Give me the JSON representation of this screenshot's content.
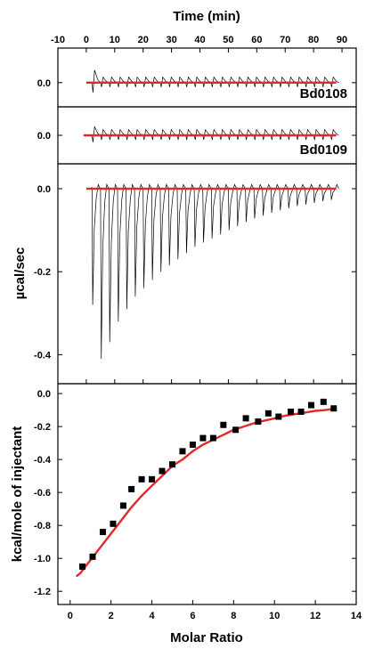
{
  "chart_data": [
    {
      "panel": "bd0108",
      "type": "line",
      "label": "Bd0108",
      "xlabel": "Time (min)",
      "ylabel": "",
      "xlim": [
        -10,
        95
      ],
      "ylim": [
        -0.035,
        0.05
      ],
      "xticks": [
        -10,
        0,
        10,
        20,
        30,
        40,
        50,
        60,
        70,
        80,
        90
      ],
      "yticks": [
        0.0
      ],
      "ytick_labels": [
        "0.0"
      ],
      "baseline": 0.0,
      "fit_x_range": [
        0,
        88
      ],
      "injections": {
        "start": 2.0,
        "interval": 3.0,
        "count": 29,
        "amplitude_first": 0.018,
        "amplitude_rest": 0.008,
        "sign": 1
      }
    },
    {
      "panel": "bd0109",
      "type": "line",
      "label": "Bd0109",
      "xlabel": "",
      "ylabel": "",
      "xlim": [
        -10,
        95
      ],
      "ylim": [
        -0.04,
        0.04
      ],
      "yticks": [
        0.0
      ],
      "ytick_labels": [
        "0.0"
      ],
      "baseline": 0.0,
      "fit_x_range": [
        -1,
        88
      ],
      "injections": {
        "start": 2.0,
        "interval": 3.0,
        "count": 29,
        "amplitude_first": 0.012,
        "amplitude_rest": 0.008,
        "sign": 1
      }
    },
    {
      "panel": "raw",
      "type": "line",
      "xlabel": "",
      "ylabel": "µcal/sec",
      "xlim": [
        -10,
        95
      ],
      "ylim": [
        -0.47,
        0.06
      ],
      "yticks": [
        0.0,
        -0.2,
        -0.4
      ],
      "ytick_labels": [
        "0.0",
        "-0.2",
        "-0.4"
      ],
      "baseline": 0.0,
      "fit_x_range": [
        0,
        88
      ],
      "peak_x": [
        2,
        5,
        8,
        11,
        14,
        17,
        20,
        23,
        26,
        29,
        32,
        35,
        38,
        41,
        44,
        47,
        50,
        53,
        56,
        59,
        62,
        65,
        68,
        71,
        74,
        77,
        80,
        83,
        86
      ],
      "peak_y": [
        -0.28,
        -0.41,
        -0.37,
        -0.32,
        -0.29,
        -0.26,
        -0.24,
        -0.22,
        -0.2,
        -0.185,
        -0.17,
        -0.155,
        -0.14,
        -0.13,
        -0.12,
        -0.11,
        -0.1,
        -0.09,
        -0.08,
        -0.072,
        -0.065,
        -0.058,
        -0.052,
        -0.047,
        -0.042,
        -0.038,
        -0.034,
        -0.03,
        -0.027
      ]
    },
    {
      "panel": "binding",
      "type": "scatter",
      "xlabel": "Molar Ratio",
      "ylabel": "kcal/mole of injectant",
      "xlim": [
        -0.6,
        14
      ],
      "ylim": [
        -1.28,
        0.06
      ],
      "xticks": [
        0,
        2,
        4,
        6,
        8,
        10,
        12,
        14
      ],
      "yticks": [
        0.0,
        -0.2,
        -0.4,
        -0.6,
        -0.8,
        -1.0,
        -1.2
      ],
      "ytick_labels": [
        "0.0",
        "-0.2",
        "-0.4",
        "-0.6",
        "-0.8",
        "-1.0",
        "-1.2"
      ],
      "points_x": [
        0.6,
        1.1,
        1.6,
        2.1,
        2.6,
        3.0,
        3.5,
        4.0,
        4.5,
        5.0,
        5.5,
        6.0,
        6.5,
        7.0,
        7.5,
        8.1,
        8.6,
        9.2,
        9.7,
        10.2,
        10.8,
        11.3,
        11.8,
        12.4,
        12.9
      ],
      "points_y": [
        -1.05,
        -0.99,
        -0.84,
        -0.79,
        -0.68,
        -0.58,
        -0.52,
        -0.52,
        -0.47,
        -0.43,
        -0.35,
        -0.31,
        -0.27,
        -0.27,
        -0.19,
        -0.22,
        -0.15,
        -0.17,
        -0.12,
        -0.14,
        -0.11,
        -0.11,
        -0.07,
        -0.05,
        -0.09
      ],
      "fit_x": [
        0.3,
        0.5,
        1,
        1.5,
        2,
        2.5,
        3,
        3.5,
        4,
        4.5,
        5,
        5.5,
        6,
        6.5,
        7,
        7.5,
        8,
        8.5,
        9,
        9.5,
        10,
        10.5,
        11,
        11.5,
        12,
        12.5,
        13
      ],
      "fit_y": [
        -1.11,
        -1.09,
        -1.01,
        -0.93,
        -0.85,
        -0.77,
        -0.69,
        -0.62,
        -0.56,
        -0.5,
        -0.44,
        -0.4,
        -0.35,
        -0.31,
        -0.28,
        -0.25,
        -0.22,
        -0.2,
        -0.18,
        -0.165,
        -0.15,
        -0.135,
        -0.125,
        -0.115,
        -0.105,
        -0.1,
        -0.09
      ]
    }
  ],
  "colors": {
    "axis": "#000000",
    "trace": "#000000",
    "fit": "#e02a2a",
    "marker": "#000000",
    "background": "#ffffff"
  }
}
